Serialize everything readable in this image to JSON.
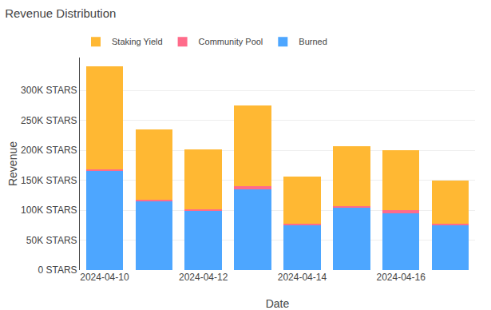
{
  "chart_data": {
    "type": "bar",
    "title": "Revenue Distribution",
    "x_label": "Date",
    "y_label": "Revenue",
    "categories": [
      "2024-04-10",
      null,
      "2024-04-12",
      null,
      "2024-04-14",
      null,
      "2024-04-16",
      null
    ],
    "series": [
      {
        "name": "Burned",
        "color": "#4da6ff",
        "values": [
          165000,
          115000,
          100000,
          135000,
          75000,
          105000,
          95000,
          75000
        ]
      },
      {
        "name": "Community Pool",
        "color": "#ff6b8a",
        "values": [
          3000,
          2000,
          2000,
          5000,
          3000,
          2000,
          5000,
          2000
        ]
      },
      {
        "name": "Staking Yield",
        "color": "#ffb833",
        "values": [
          172000,
          118000,
          100000,
          135000,
          78000,
          100000,
          100000,
          73000
        ]
      }
    ],
    "stacked": true,
    "ylim": [
      0,
      355000
    ],
    "yticks": [
      {
        "value": 0,
        "label": "0 STARS"
      },
      {
        "value": 50000,
        "label": "50K STARS"
      },
      {
        "value": 100000,
        "label": "100K STARS"
      },
      {
        "value": 150000,
        "label": "150K STARS"
      },
      {
        "value": 200000,
        "label": "200K STARS"
      },
      {
        "value": 250000,
        "label": "250K STARS"
      },
      {
        "value": 300000,
        "label": "300K STARS"
      }
    ],
    "grid": true,
    "legend": "upper left"
  }
}
